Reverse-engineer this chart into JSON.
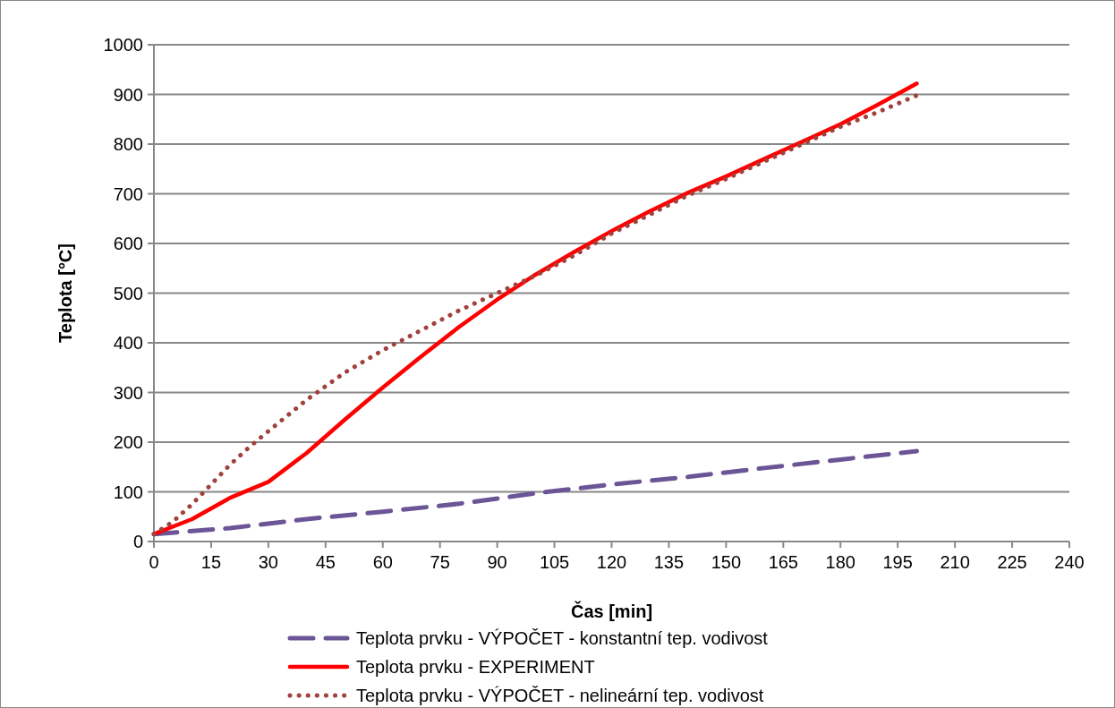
{
  "chart_data": {
    "type": "line",
    "xlabel": "Čas [min]",
    "ylabel": "Teplota [°C]",
    "xlim": [
      0,
      240
    ],
    "xticks": [
      0,
      15,
      30,
      45,
      60,
      75,
      90,
      105,
      120,
      135,
      150,
      165,
      180,
      195,
      210,
      225,
      240
    ],
    "ylim": [
      0,
      1000
    ],
    "yticks": [
      0,
      100,
      200,
      300,
      400,
      500,
      600,
      700,
      800,
      900,
      1000
    ],
    "grid": "y",
    "legend": "bottom",
    "series": [
      {
        "name": "Teplota prvku - VÝPOČET - konstantní tep. vodivost",
        "color": "#6b5597",
        "line_style": "dashed",
        "x": [
          0,
          20,
          40,
          60,
          80,
          100,
          120,
          140,
          160,
          180,
          200
        ],
        "values": [
          15,
          27,
          45,
          60,
          76,
          97,
          115,
          130,
          148,
          165,
          182
        ]
      },
      {
        "name": "Teplota prvku - EXPERIMENT",
        "color": "#ff0000",
        "line_style": "solid",
        "x": [
          0,
          10,
          20,
          30,
          40,
          50,
          60,
          70,
          80,
          90,
          100,
          110,
          120,
          130,
          140,
          150,
          160,
          170,
          180,
          190,
          200
        ],
        "values": [
          15,
          45,
          88,
          120,
          178,
          245,
          310,
          372,
          432,
          487,
          537,
          582,
          625,
          665,
          702,
          735,
          770,
          805,
          840,
          880,
          922
        ]
      },
      {
        "name": "Teplota prvku - VÝPOČET - nelineární tep. vodivost",
        "color": "#a0413c",
        "line_style": "dotted",
        "x": [
          0,
          5,
          10,
          15,
          20,
          25,
          30,
          40,
          50,
          60,
          70,
          80,
          90,
          100,
          110,
          120,
          130,
          140,
          150,
          160,
          170,
          180,
          190,
          200
        ],
        "values": [
          15,
          40,
          75,
          115,
          155,
          190,
          222,
          285,
          340,
          385,
          425,
          465,
          500,
          535,
          575,
          620,
          658,
          697,
          730,
          765,
          800,
          835,
          865,
          898
        ]
      }
    ]
  }
}
